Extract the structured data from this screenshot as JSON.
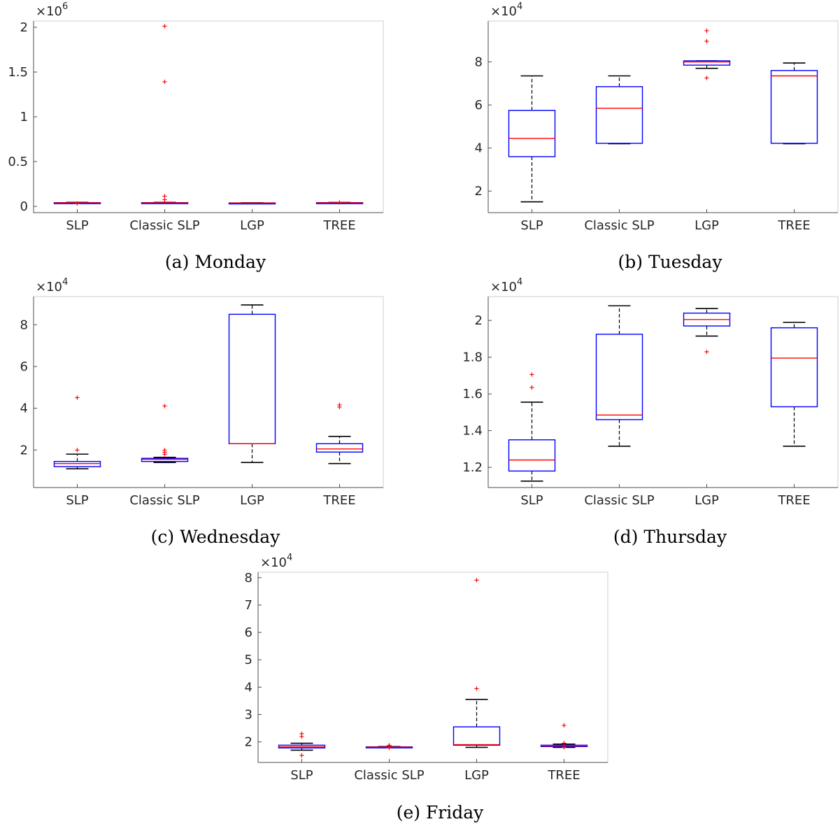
{
  "chart_data": [
    {
      "type": "box",
      "caption": "(a) Monday",
      "categories": [
        "SLP",
        "Classic SLP",
        "LGP",
        "TREE"
      ],
      "y_exponent": "6",
      "yticks": [
        0,
        0.5,
        1,
        1.5,
        2
      ],
      "ylim": [
        -0.07,
        2.07
      ],
      "boxes": [
        {
          "whisker_low": 0.035,
          "q1": 0.038,
          "median": 0.04,
          "q3": 0.042,
          "whisker_high": 0.045,
          "outliers": [
            0.03
          ]
        },
        {
          "whisker_low": 0.035,
          "q1": 0.038,
          "median": 0.04,
          "q3": 0.042,
          "whisker_high": 0.045,
          "outliers": [
            2.01,
            1.39,
            0.115,
            0.075
          ]
        },
        {
          "whisker_low": 0.035,
          "q1": 0.037,
          "median": 0.038,
          "q3": 0.039,
          "whisker_high": 0.04,
          "outliers": []
        },
        {
          "whisker_low": 0.036,
          "q1": 0.038,
          "median": 0.04,
          "q3": 0.042,
          "whisker_high": 0.044,
          "outliers": [
            0.045
          ]
        }
      ]
    },
    {
      "type": "box",
      "caption": "(b) Tuesday",
      "categories": [
        "SLP",
        "Classic SLP",
        "LGP",
        "TREE"
      ],
      "y_exponent": "4",
      "yticks": [
        2,
        4,
        6,
        8
      ],
      "ylim": [
        1.0,
        9.9
      ],
      "boxes": [
        {
          "whisker_low": 1.5,
          "q1": 3.6,
          "median": 4.45,
          "q3": 5.75,
          "whisker_high": 7.35,
          "outliers": []
        },
        {
          "whisker_low": 4.2,
          "q1": 4.22,
          "median": 5.85,
          "q3": 6.85,
          "whisker_high": 7.35,
          "outliers": []
        },
        {
          "whisker_low": 7.7,
          "q1": 7.85,
          "median": 8.0,
          "q3": 8.05,
          "whisker_high": 8.05,
          "outliers": [
            9.45,
            8.95,
            7.25
          ]
        },
        {
          "whisker_low": 4.2,
          "q1": 4.22,
          "median": 7.35,
          "q3": 7.6,
          "whisker_high": 7.95,
          "outliers": []
        }
      ]
    },
    {
      "type": "box",
      "caption": "(c) Wednesday",
      "categories": [
        "SLP",
        "Classic SLP",
        "LGP",
        "TREE"
      ],
      "y_exponent": "4",
      "yticks": [
        2,
        4,
        6,
        8
      ],
      "ylim": [
        0.2,
        9.35
      ],
      "boxes": [
        {
          "whisker_low": 1.1,
          "q1": 1.2,
          "median": 1.35,
          "q3": 1.45,
          "whisker_high": 1.8,
          "outliers": [
            4.5,
            2.0
          ]
        },
        {
          "whisker_low": 1.4,
          "q1": 1.45,
          "median": 1.55,
          "q3": 1.6,
          "whisker_high": 1.65,
          "outliers": [
            4.1,
            2.0,
            1.9,
            1.8
          ]
        },
        {
          "whisker_low": 1.4,
          "q1": 2.3,
          "median": 2.3,
          "q3": 8.5,
          "whisker_high": 8.95,
          "outliers": []
        },
        {
          "whisker_low": 1.35,
          "q1": 1.9,
          "median": 2.05,
          "q3": 2.3,
          "whisker_high": 2.65,
          "outliers": [
            4.15,
            4.05
          ]
        }
      ]
    },
    {
      "type": "box",
      "caption": "(d) Thursday",
      "categories": [
        "SLP",
        "Classic SLP",
        "LGP",
        "TREE"
      ],
      "y_exponent": "4",
      "yticks": [
        1.2,
        1.4,
        1.6,
        1.8,
        2
      ],
      "ylim": [
        1.09,
        2.13
      ],
      "boxes": [
        {
          "whisker_low": 1.125,
          "q1": 1.18,
          "median": 1.24,
          "q3": 1.35,
          "whisker_high": 1.555,
          "outliers": [
            1.705,
            1.635
          ]
        },
        {
          "whisker_low": 1.315,
          "q1": 1.46,
          "median": 1.485,
          "q3": 1.925,
          "whisker_high": 2.08,
          "outliers": []
        },
        {
          "whisker_low": 1.915,
          "q1": 1.97,
          "median": 2.005,
          "q3": 2.04,
          "whisker_high": 2.065,
          "outliers": [
            1.83
          ]
        },
        {
          "whisker_low": 1.315,
          "q1": 1.53,
          "median": 1.795,
          "q3": 1.96,
          "whisker_high": 1.99,
          "outliers": []
        }
      ]
    },
    {
      "type": "box",
      "caption": "(e) Friday",
      "categories": [
        "SLP",
        "Classic SLP",
        "LGP",
        "TREE"
      ],
      "y_exponent": "4",
      "yticks": [
        2,
        3,
        4,
        5,
        6,
        7,
        8
      ],
      "ylim": [
        1.25,
        8.2
      ],
      "boxes": [
        {
          "whisker_low": 1.7,
          "q1": 1.78,
          "median": 1.82,
          "q3": 1.88,
          "whisker_high": 1.95,
          "outliers": [
            2.3,
            2.2,
            1.5
          ]
        },
        {
          "whisker_low": 1.79,
          "q1": 1.8,
          "median": 1.81,
          "q3": 1.82,
          "whisker_high": 1.83,
          "outliers": [
            1.85,
            1.87,
            1.77
          ]
        },
        {
          "whisker_low": 1.8,
          "q1": 1.88,
          "median": 1.9,
          "q3": 2.55,
          "whisker_high": 3.55,
          "outliers": [
            7.9,
            3.95
          ]
        },
        {
          "whisker_low": 1.8,
          "q1": 1.83,
          "median": 1.86,
          "q3": 1.88,
          "whisker_high": 1.92,
          "outliers": [
            2.6,
            1.95,
            1.8
          ]
        }
      ]
    }
  ]
}
